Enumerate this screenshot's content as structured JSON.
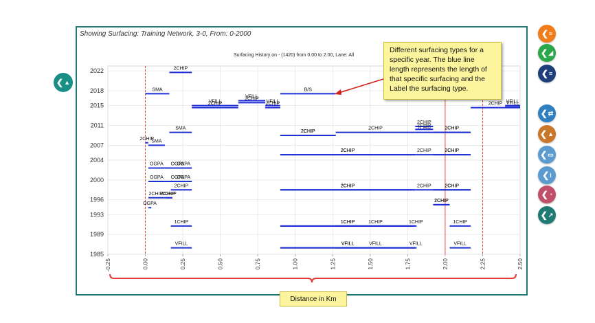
{
  "header": {
    "text": "Showing Surfacing:  Training Network,  3-0,  From: 0-2000"
  },
  "callout": {
    "text": "Different surfacing types for a specific year. The blue line length represents the length of that specific surfacing and the Label the surfacing type."
  },
  "xaxis_caption": "Distance in Km",
  "left_button": {
    "icon": "road-icon",
    "color": "#1a8f86"
  },
  "right_buttons": [
    {
      "icon": "chart-road-icon",
      "color": "#f07d1a"
    },
    {
      "icon": "area-chart-icon",
      "color": "#2aa84a"
    },
    {
      "icon": "bars-icon",
      "color": "#1f3f7a"
    },
    {
      "icon": "road-swap-icon",
      "color": "#2f7fc1"
    },
    {
      "icon": "road-warning-icon",
      "color": "#c9782a"
    },
    {
      "icon": "comment-icon",
      "color": "#5b9bd0"
    },
    {
      "icon": "info-icon",
      "color": "#5b9bd0"
    },
    {
      "icon": "pie-chart-icon",
      "color": "#c0506a"
    },
    {
      "icon": "trend-chart-icon",
      "color": "#1f7a74"
    }
  ],
  "colors": {
    "bar": "#1f2fd6",
    "redline": "#e53935"
  },
  "chart_data": {
    "type": "bar",
    "title": "Surfacing History on - (1420)  from 0.00 to 2.00, Lane: All",
    "xlim": [
      -0.25,
      2.5
    ],
    "xticks": [
      "-0.25",
      "0.00",
      "0.25",
      "0.50",
      "0.75",
      "1.00",
      "1.25",
      "1.50",
      "1.75",
      "2.00",
      "2.25",
      "2.50"
    ],
    "ylim": [
      1985,
      2023
    ],
    "yticks": [
      "2022",
      "2018",
      "2015",
      "2011",
      "2007",
      "2004",
      "2000",
      "1996",
      "1993",
      "1989",
      "1985"
    ],
    "vlines": [
      {
        "x": 0.0,
        "style": "dashed"
      },
      {
        "x": 2.0,
        "style": "solid"
      },
      {
        "x": 2.25,
        "style": "dashed"
      }
    ],
    "segments": [
      {
        "year": 2021.7,
        "from": 0.16,
        "to": 0.31,
        "label": "2CHIP"
      },
      {
        "year": 2017.4,
        "from": 0.0,
        "to": 0.16,
        "label": "SMA"
      },
      {
        "year": 2015.0,
        "from": 0.31,
        "to": 0.62,
        "label": "VFILL"
      },
      {
        "year": 2014.6,
        "from": 0.31,
        "to": 0.62,
        "label": "2CHIP"
      },
      {
        "year": 2016.0,
        "from": 0.62,
        "to": 0.8,
        "label": "VFILL"
      },
      {
        "year": 2015.6,
        "from": 0.62,
        "to": 0.8,
        "label": "2CHIP"
      },
      {
        "year": 2015.0,
        "from": 0.8,
        "to": 0.9,
        "label": "VFILL"
      },
      {
        "year": 2014.6,
        "from": 0.8,
        "to": 0.9,
        "label": "2CHIP"
      },
      {
        "year": 2017.4,
        "from": 0.9,
        "to": 1.27,
        "label": "B/S"
      },
      {
        "year": 2014.6,
        "from": 2.17,
        "to": 2.5,
        "label": "2CHIP"
      },
      {
        "year": 2015.0,
        "from": 2.4,
        "to": 2.5,
        "label": "VFILL"
      },
      {
        "year": 2014.7,
        "from": 2.4,
        "to": 2.5,
        "label": "VFILL"
      },
      {
        "year": 2009.6,
        "from": 0.16,
        "to": 0.31,
        "label": "SMA"
      },
      {
        "year": 2007.5,
        "from": 0.0,
        "to": 0.02,
        "label": "2CHIP"
      },
      {
        "year": 2007.0,
        "from": 0.02,
        "to": 0.13,
        "label": "SMA"
      },
      {
        "year": 2009.0,
        "from": 0.9,
        "to": 1.27,
        "label": "2CHIP"
      },
      {
        "year": 2009.0,
        "from": 0.9,
        "to": 1.27,
        "label": "2CHIP"
      },
      {
        "year": 2009.6,
        "from": 1.27,
        "to": 1.8,
        "label": "2CHIP"
      },
      {
        "year": 2009.6,
        "from": 1.8,
        "to": 1.92,
        "label": "2CHIP"
      },
      {
        "year": 2010.8,
        "from": 1.8,
        "to": 1.92,
        "label": "2CHIP"
      },
      {
        "year": 2010.2,
        "from": 1.8,
        "to": 1.92,
        "label": "2CHIP"
      },
      {
        "year": 2009.6,
        "from": 1.92,
        "to": 2.17,
        "label": "2CHIP"
      },
      {
        "year": 2009.6,
        "from": 1.92,
        "to": 2.17,
        "label": "2CHIP"
      },
      {
        "year": 2005.1,
        "from": 0.9,
        "to": 1.8,
        "label": "2CHIP"
      },
      {
        "year": 2005.1,
        "from": 0.9,
        "to": 1.8,
        "label": "2CHIP"
      },
      {
        "year": 2005.1,
        "from": 1.8,
        "to": 1.92,
        "label": "2CHIP"
      },
      {
        "year": 2005.1,
        "from": 1.92,
        "to": 2.17,
        "label": "2CHIP"
      },
      {
        "year": 2005.1,
        "from": 1.92,
        "to": 2.17,
        "label": "2CHIP"
      },
      {
        "year": 2002.4,
        "from": 0.02,
        "to": 0.13,
        "label": "OGPA"
      },
      {
        "year": 2002.4,
        "from": 0.13,
        "to": 0.3,
        "label": "OGPA"
      },
      {
        "year": 2002.4,
        "from": 0.2,
        "to": 0.31,
        "label": "OGPA"
      },
      {
        "year": 1999.7,
        "from": 0.02,
        "to": 0.13,
        "label": "OGPA"
      },
      {
        "year": 1999.7,
        "from": 0.13,
        "to": 0.3,
        "label": "OGPA"
      },
      {
        "year": 1999.7,
        "from": 0.2,
        "to": 0.31,
        "label": "OGPA"
      },
      {
        "year": 1998.0,
        "from": 0.17,
        "to": 0.31,
        "label": "2CHIP"
      },
      {
        "year": 1996.4,
        "from": 0.02,
        "to": 0.12,
        "label": "2CHIP"
      },
      {
        "year": 1996.4,
        "from": 0.12,
        "to": 0.18,
        "label": "2CHIP"
      },
      {
        "year": 1996.4,
        "from": 0.14,
        "to": 0.18,
        "label": "2CHIP"
      },
      {
        "year": 1998.0,
        "from": 0.9,
        "to": 1.8,
        "label": "2CHIP"
      },
      {
        "year": 1998.0,
        "from": 0.9,
        "to": 1.8,
        "label": "2CHIP"
      },
      {
        "year": 1998.0,
        "from": 1.8,
        "to": 1.92,
        "label": "2CHIP"
      },
      {
        "year": 1998.0,
        "from": 1.92,
        "to": 2.17,
        "label": "2CHIP"
      },
      {
        "year": 1998.0,
        "from": 1.92,
        "to": 2.17,
        "label": "2CHIP"
      },
      {
        "year": 1994.4,
        "from": 0.02,
        "to": 0.04,
        "label": "OGPA"
      },
      {
        "year": 1995.0,
        "from": 1.92,
        "to": 2.03,
        "label": "1CHIP"
      },
      {
        "year": 1995.0,
        "from": 1.92,
        "to": 2.03,
        "label": "2CHIP"
      },
      {
        "year": 1990.7,
        "from": 0.17,
        "to": 0.31,
        "label": "1CHIP"
      },
      {
        "year": 1990.7,
        "from": 0.9,
        "to": 1.8,
        "label": "1CHIP"
      },
      {
        "year": 1990.7,
        "from": 0.9,
        "to": 1.8,
        "label": "1CHIP"
      },
      {
        "year": 1990.7,
        "from": 1.27,
        "to": 1.8,
        "label": "1CHIP"
      },
      {
        "year": 1990.7,
        "from": 1.8,
        "to": 1.8,
        "label": "1CHIP"
      },
      {
        "year": 1990.7,
        "from": 2.03,
        "to": 2.17,
        "label": "1CHIP"
      },
      {
        "year": 1986.3,
        "from": 0.17,
        "to": 0.31,
        "label": "VFILL"
      },
      {
        "year": 1986.3,
        "from": 0.9,
        "to": 1.8,
        "label": "VFILL"
      },
      {
        "year": 1986.3,
        "from": 0.9,
        "to": 1.8,
        "label": "VFILL"
      },
      {
        "year": 1986.3,
        "from": 1.27,
        "to": 1.8,
        "label": "VFILL"
      },
      {
        "year": 1986.3,
        "from": 1.8,
        "to": 1.8,
        "label": "VFILL"
      },
      {
        "year": 1986.3,
        "from": 2.03,
        "to": 2.17,
        "label": "VFILL"
      }
    ]
  }
}
